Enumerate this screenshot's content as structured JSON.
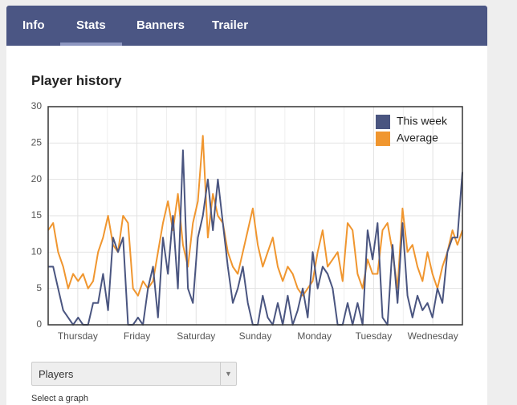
{
  "tabs": [
    "Info",
    "Stats",
    "Banners",
    "Trailer"
  ],
  "active_tab": 1,
  "chart_data": {
    "type": "line",
    "title": "Player history",
    "xtick_labels": [
      "Thursday",
      "Friday",
      "Saturday",
      "Sunday",
      "Monday",
      "Tuesday",
      "Wednesday"
    ],
    "ylim": [
      0,
      30
    ],
    "yticks": [
      0,
      5,
      10,
      15,
      20,
      25,
      30
    ],
    "grid": true,
    "legend": "top-right",
    "series": [
      {
        "name": "This week",
        "color": "#4a5580",
        "values": [
          8,
          8,
          5,
          2,
          1,
          0,
          1,
          0,
          0,
          3,
          3,
          7,
          2,
          12,
          10,
          12,
          0,
          0,
          1,
          0,
          5,
          8,
          1,
          12,
          7,
          15,
          5,
          24,
          5,
          3,
          12,
          15,
          20,
          13,
          20,
          14,
          8,
          3,
          5,
          8,
          3,
          0,
          0,
          4,
          1,
          0,
          3,
          0,
          4,
          0,
          2,
          5,
          1,
          10,
          5,
          8,
          7,
          5,
          0,
          0,
          3,
          0,
          3,
          0,
          13,
          9,
          14,
          1,
          0,
          11,
          3,
          14,
          4,
          1,
          4,
          2,
          3,
          1,
          5,
          3,
          10,
          12,
          12,
          21
        ]
      },
      {
        "name": "Average",
        "color": "#f0962f",
        "values": [
          13,
          14,
          10,
          8,
          5,
          7,
          6,
          7,
          5,
          6,
          10,
          12,
          15,
          11,
          10,
          15,
          14,
          5,
          4,
          6,
          5,
          6,
          10,
          14,
          17,
          13,
          18,
          11,
          8,
          14,
          17,
          26,
          12,
          18,
          15,
          14,
          10,
          8,
          7,
          10,
          13,
          16,
          11,
          8,
          10,
          12,
          8,
          6,
          8,
          7,
          5,
          4,
          5,
          6,
          10,
          13,
          8,
          9,
          10,
          6,
          14,
          13,
          7,
          5,
          9,
          7,
          7,
          13,
          14,
          10,
          5,
          16,
          10,
          11,
          8,
          6,
          10,
          7,
          5,
          8,
          10,
          13,
          11,
          13
        ]
      }
    ]
  },
  "dropdown": {
    "value": "Players",
    "hint": "Select a graph"
  }
}
